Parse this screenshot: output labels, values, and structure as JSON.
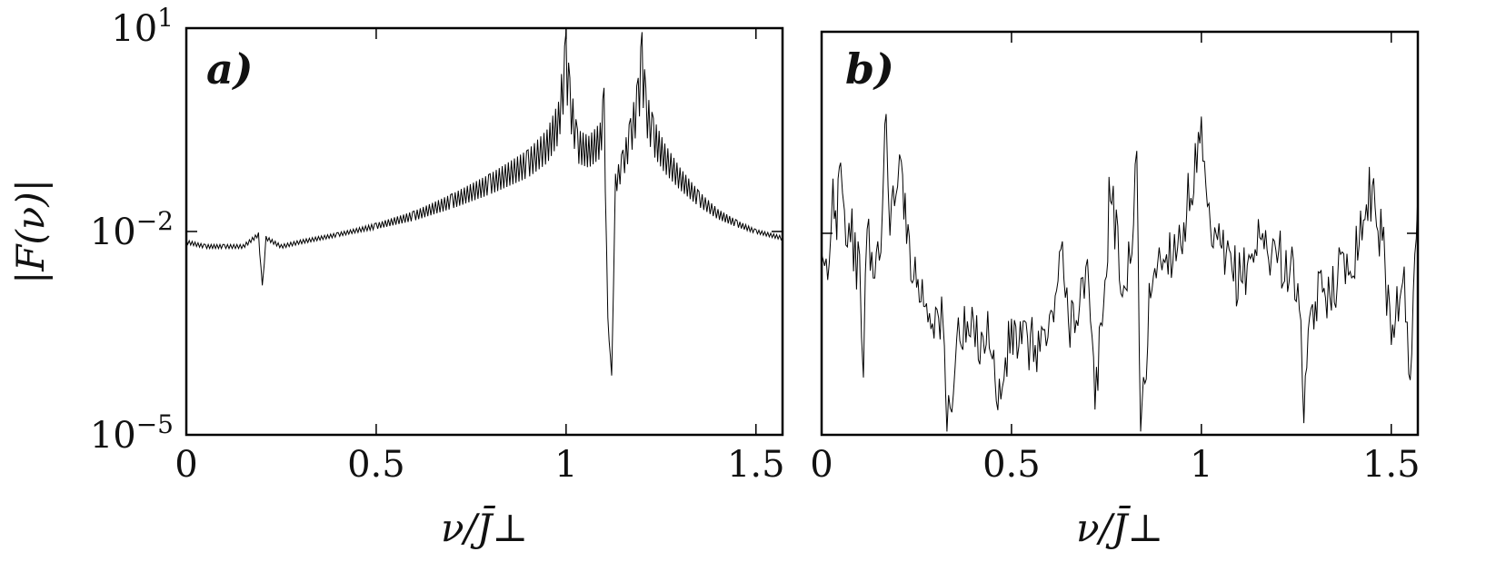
{
  "chart_data": [
    {
      "type": "line",
      "panel_label": "a)",
      "xlabel": "ν/J̄⊥",
      "ylabel": "|F(ν)|",
      "xlim": [
        0,
        1.57
      ],
      "ylim": [
        1e-05,
        10
      ],
      "y_scale": "log",
      "x_ticks": [
        0,
        0.5,
        1,
        1.5
      ],
      "x_tick_labels": [
        "0",
        "0.5",
        "1",
        "1.5"
      ],
      "y_ticks": [
        1e-05,
        0.01,
        10
      ],
      "y_tick_labels": [
        "10",
        "10",
        "10"
      ],
      "y_tick_exponents": [
        "−5",
        "−2",
        "1"
      ],
      "grid": false,
      "series": [
        {
          "x": [
            0,
            0.05,
            0.1,
            0.15,
            0.19,
            0.2,
            0.21,
            0.25,
            0.3,
            0.4,
            0.5,
            0.6,
            0.7,
            0.8,
            0.9,
            0.95,
            0.98,
            1.0,
            1.01,
            1.03,
            1.06,
            1.09,
            1.1,
            1.11,
            1.12,
            1.13,
            1.15,
            1.17,
            1.19,
            1.2,
            1.21,
            1.23,
            1.26,
            1.3,
            1.35,
            1.4,
            1.45,
            1.5,
            1.57
          ],
          "y": [
            0.007,
            0.006,
            0.006,
            0.006,
            0.009,
            0.0015,
            0.008,
            0.006,
            0.007,
            0.009,
            0.012,
            0.017,
            0.028,
            0.05,
            0.1,
            0.18,
            0.4,
            3,
            0.8,
            0.18,
            0.15,
            0.22,
            0.6,
            0.0005,
            7e-05,
            0.05,
            0.1,
            0.25,
            0.8,
            3,
            0.6,
            0.25,
            0.12,
            0.06,
            0.03,
            0.018,
            0.013,
            0.01,
            0.008
          ]
        }
      ]
    },
    {
      "type": "line",
      "panel_label": "b)",
      "xlabel": "ν/J̄⊥",
      "xlim": [
        0,
        1.57
      ],
      "ylim": [
        1e-05,
        10
      ],
      "y_scale": "log",
      "x_ticks": [
        0,
        0.5,
        1,
        1.5
      ],
      "x_tick_labels": [
        "0",
        "0.5",
        "1",
        "1.5"
      ],
      "grid": false,
      "series": [
        {
          "x": [
            0,
            0.02,
            0.03,
            0.04,
            0.05,
            0.06,
            0.08,
            0.1,
            0.11,
            0.12,
            0.14,
            0.16,
            0.17,
            0.18,
            0.2,
            0.21,
            0.22,
            0.25,
            0.28,
            0.3,
            0.32,
            0.33,
            0.36,
            0.4,
            0.45,
            0.46,
            0.5,
            0.55,
            0.6,
            0.63,
            0.65,
            0.7,
            0.72,
            0.75,
            0.76,
            0.78,
            0.8,
            0.83,
            0.84,
            0.87,
            0.9,
            0.95,
            0.98,
            1.0,
            1.02,
            1.05,
            1.1,
            1.15,
            1.2,
            1.25,
            1.27,
            1.3,
            1.35,
            1.4,
            1.45,
            1.48,
            1.5,
            1.53,
            1.55,
            1.57
          ],
          "y": [
            0.002,
            0.003,
            0.04,
            0.02,
            0.3,
            0.015,
            0.01,
            0.002,
            0.00015,
            0.01,
            0.002,
            0.02,
            0.5,
            0.02,
            0.03,
            0.3,
            0.015,
            0.002,
            0.0008,
            0.0006,
            0.0004,
            1.3e-05,
            0.0003,
            0.0003,
            0.0003,
            2.2e-05,
            0.0003,
            0.0002,
            0.0003,
            0.005,
            0.0005,
            0.002,
            3e-05,
            0.003,
            0.08,
            0.005,
            0.001,
            0.08,
            8e-06,
            0.003,
            0.004,
            0.01,
            0.08,
            0.2,
            0.01,
            0.005,
            0.002,
            0.008,
            0.005,
            0.002,
            4e-05,
            0.001,
            0.002,
            0.005,
            0.05,
            0.005,
            0.0003,
            0.003,
            5e-05,
            0.04
          ]
        }
      ]
    }
  ]
}
